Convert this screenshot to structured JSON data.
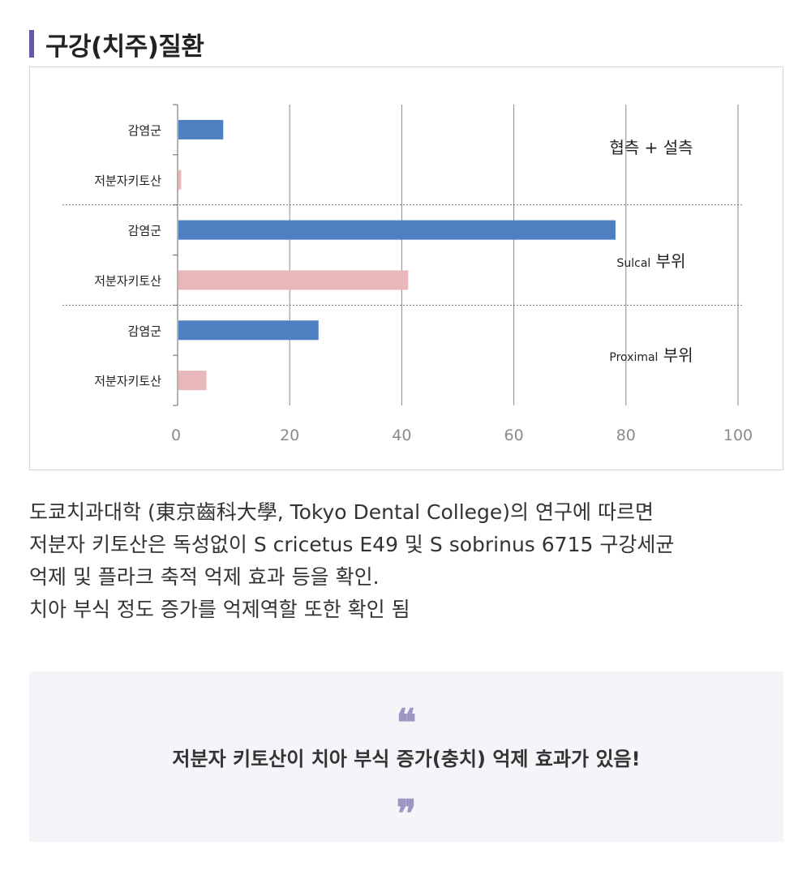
{
  "section": {
    "title": "구강(치주)질환"
  },
  "chart_data": {
    "type": "bar",
    "orientation": "horizontal",
    "title": "",
    "xlabel": "",
    "ylabel": "",
    "xlim": [
      0,
      100
    ],
    "x_ticks": [
      0,
      20,
      40,
      60,
      80,
      100
    ],
    "grid": "vertical",
    "groups": [
      {
        "label": "협측 + 설측",
        "label_parts": [
          {
            "text": "협측 + 설측",
            "size": "large"
          }
        ]
      },
      {
        "label": "Sulcal 부위",
        "label_parts": [
          {
            "text": "Sulcal",
            "size": "small"
          },
          {
            "text": " 부위",
            "size": "large"
          }
        ]
      },
      {
        "label": "Proximal 부위",
        "label_parts": [
          {
            "text": "Proximal",
            "size": "small"
          },
          {
            "text": " 부위",
            "size": "large"
          }
        ]
      }
    ],
    "bars": [
      {
        "group": 0,
        "category": "감염군",
        "value": 8,
        "color": "#4f7fc0"
      },
      {
        "group": 0,
        "category": "저분자키토산",
        "value": 0.5,
        "color": "#e8b7b9"
      },
      {
        "group": 1,
        "category": "감염군",
        "value": 78,
        "color": "#4f7fc0"
      },
      {
        "group": 1,
        "category": "저분자키토산",
        "value": 41,
        "color": "#e8b7b9"
      },
      {
        "group": 2,
        "category": "감염군",
        "value": 25,
        "color": "#4f7fc0"
      },
      {
        "group": 2,
        "category": "저분자키토산",
        "value": 5,
        "color": "#e8b7b9"
      }
    ]
  },
  "description": {
    "lines": [
      "도쿄치과대학 (東京齒科大學, Tokyo Dental College)의 연구에 따르면",
      "저분자 키토산은 독성없이 S cricetus E49 및 S sobrinus 6715 구강세균",
      "억제 및 플라크 축적 억제 효과 등을 확인.",
      "치아 부식 정도 증가를 억제역할 또한 확인 됨"
    ]
  },
  "quote": {
    "open_mark": "❝",
    "text": "저분자 키토산이 치아 부식 증가(충치) 억제 효과가 있음!",
    "close_mark": "❞",
    "mark_color": "#9b97c2"
  },
  "colors": {
    "accent": "#6b57a8",
    "infected": "#4f7fc0",
    "chitosan": "#e8b7b9"
  }
}
